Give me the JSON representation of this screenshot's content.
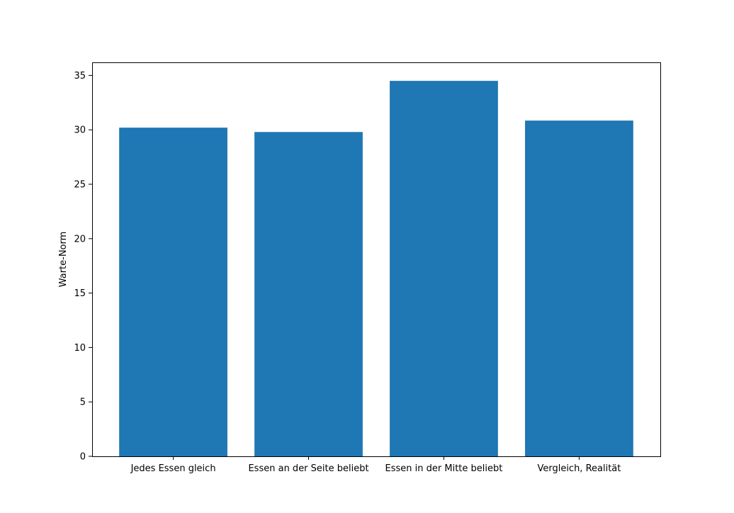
{
  "chart_data": {
    "type": "bar",
    "title": "",
    "xlabel": "",
    "ylabel": "Warte-Norm",
    "categories": [
      "Jedes Essen gleich",
      "Essen an der Seite beliebt",
      "Essen in der Mitte beliebt",
      "Vergleich, Realität"
    ],
    "values": [
      30.2,
      29.8,
      34.5,
      30.85
    ],
    "ylim": [
      0,
      36.2
    ],
    "yticks": [
      0,
      5,
      10,
      15,
      20,
      25,
      30,
      35
    ],
    "grid": false,
    "bar_color": "#1f77b4"
  }
}
